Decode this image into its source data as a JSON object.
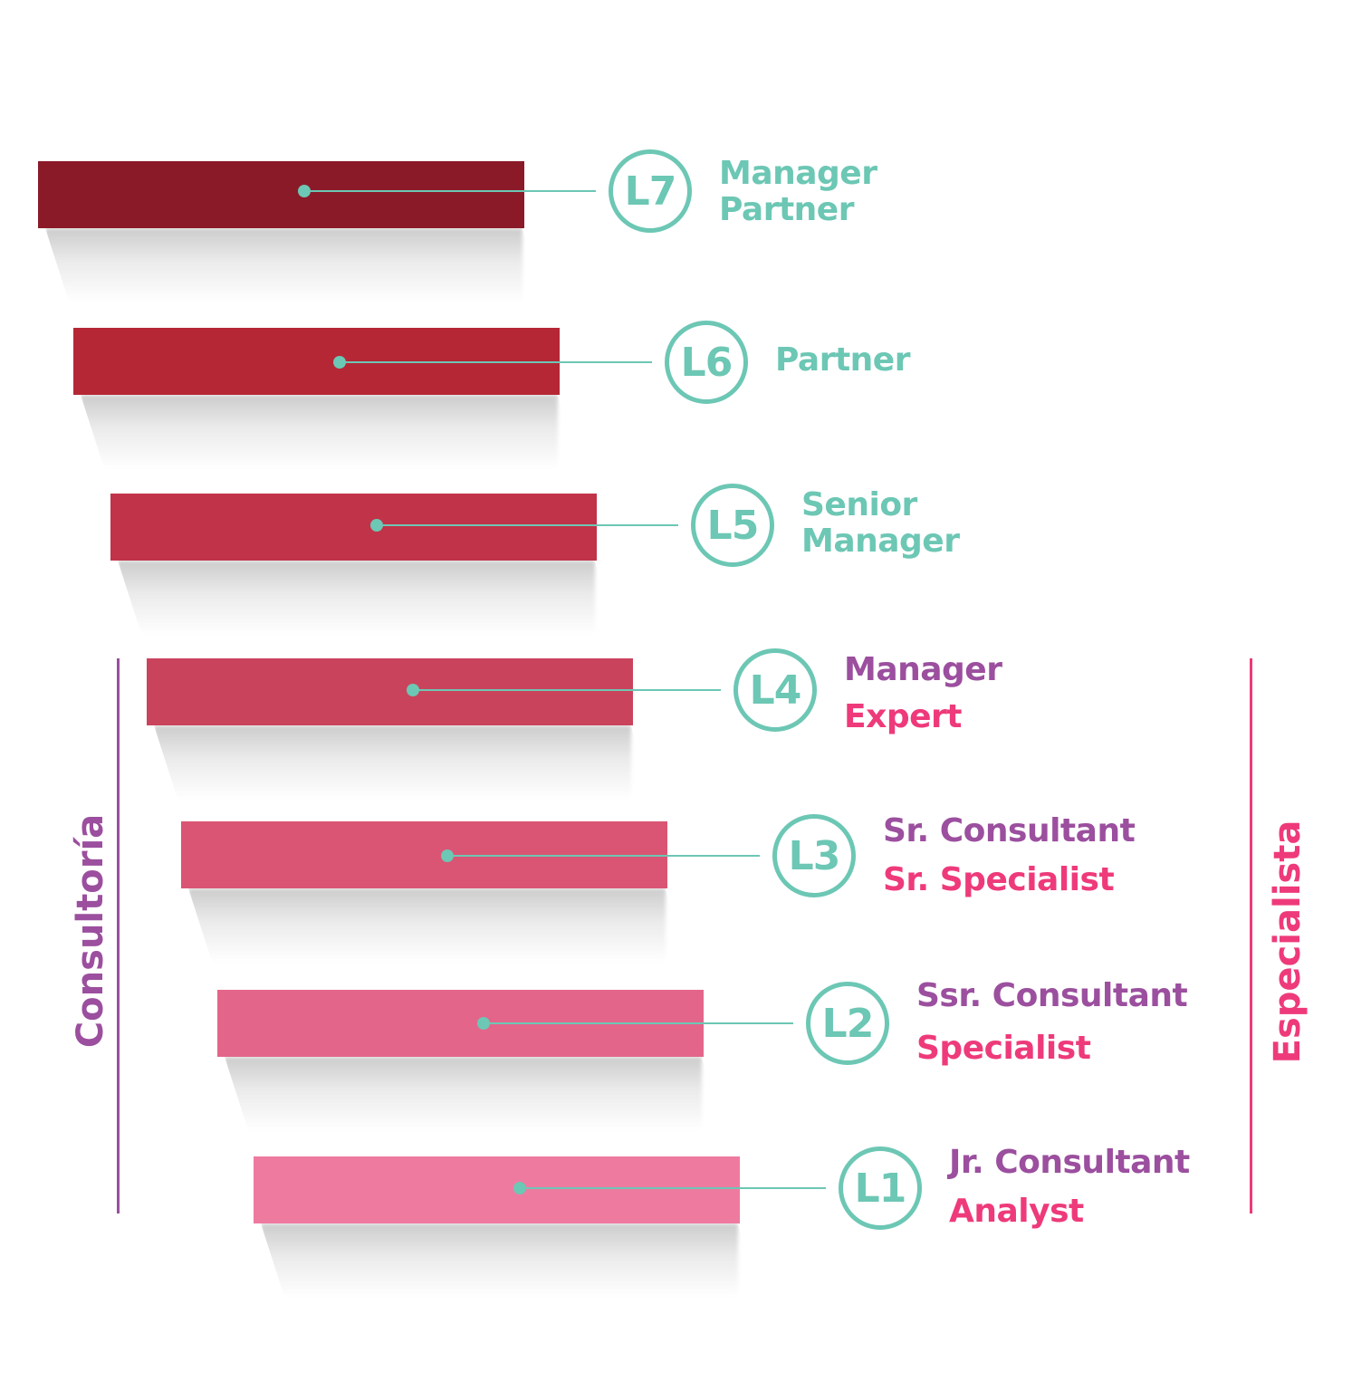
{
  "colors": {
    "teal": "#6cc7b4",
    "purple": "#9b4f9e",
    "pink": "#ee3a7a"
  },
  "levels": [
    {
      "badge": "L7",
      "bar_color": "#8b1a28",
      "roles": [
        {
          "text": "Manager",
          "color": "#6cc7b4"
        },
        {
          "text": "Partner",
          "color": "#6cc7b4"
        }
      ]
    },
    {
      "badge": "L6",
      "bar_color": "#b52735",
      "roles": [
        {
          "text": "Partner",
          "color": "#6cc7b4"
        }
      ]
    },
    {
      "badge": "L5",
      "bar_color": "#c13348",
      "roles": [
        {
          "text": "Senior",
          "color": "#6cc7b4"
        },
        {
          "text": "Manager",
          "color": "#6cc7b4"
        }
      ]
    },
    {
      "badge": "L4",
      "bar_color": "#ca435c",
      "roles": [
        {
          "text": "Manager",
          "color": "#9b4f9e"
        },
        {
          "text": "Expert",
          "color": "#ee3a7a"
        }
      ]
    },
    {
      "badge": "L3",
      "bar_color": "#d95573",
      "roles": [
        {
          "text": "Sr. Consultant",
          "color": "#9b4f9e"
        },
        {
          "text": "Sr. Specialist",
          "color": "#ee3a7a"
        }
      ]
    },
    {
      "badge": "L2",
      "bar_color": "#e3658a",
      "roles": [
        {
          "text": "Ssr. Consultant",
          "color": "#9b4f9e"
        },
        {
          "text": "Specialist",
          "color": "#ee3a7a"
        }
      ]
    },
    {
      "badge": "L1",
      "bar_color": "#ee7aa0",
      "roles": [
        {
          "text": "Jr. Consultant",
          "color": "#9b4f9e"
        },
        {
          "text": "Analyst",
          "color": "#ee3a7a"
        }
      ]
    }
  ],
  "tracks": {
    "left": {
      "label": "Consultoría",
      "color": "#9b4f9e"
    },
    "right": {
      "label": "Especialista",
      "color": "#ee3a7a"
    }
  }
}
